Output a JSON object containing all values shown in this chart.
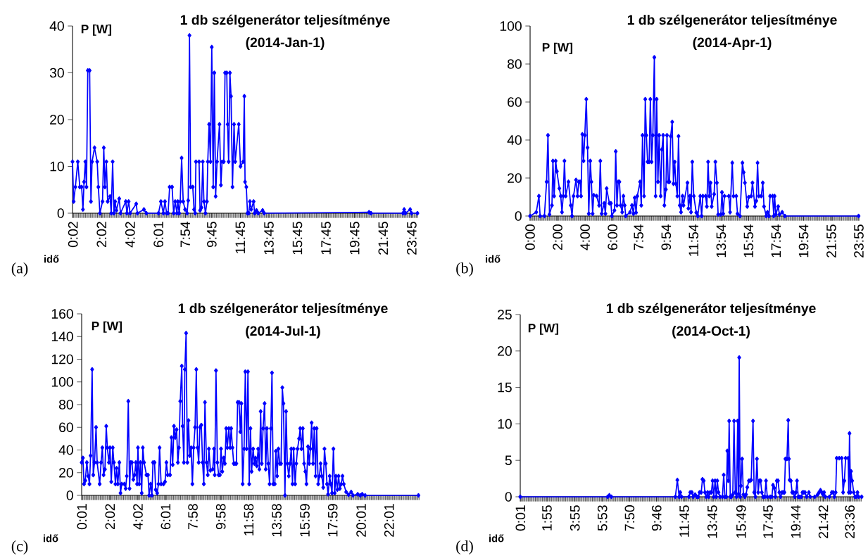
{
  "chart_data": [
    {
      "type": "line",
      "title": "1 db szélgenerátor teljesítménye",
      "subtitle": "(2014-Jan-1)",
      "xlabel": "idő",
      "ylabel": "P [W]",
      "annotations": [
        "(a)"
      ],
      "color": "#0000ff",
      "marker": "diamond",
      "xlim": [
        0,
        24.2
      ],
      "ylim": [
        0,
        40
      ],
      "yticks": [
        0,
        10,
        20,
        30,
        40
      ],
      "xticks": [
        {
          "value": 0.033,
          "label": "0:02"
        },
        {
          "value": 2.033,
          "label": "2:02"
        },
        {
          "value": 4.033,
          "label": "4:02"
        },
        {
          "value": 6.017,
          "label": "6:01"
        },
        {
          "value": 7.9,
          "label": "7:54"
        },
        {
          "value": 9.75,
          "label": "9:45"
        },
        {
          "value": 11.75,
          "label": "11:45"
        },
        {
          "value": 13.75,
          "label": "13:45"
        },
        {
          "value": 15.75,
          "label": "15:45"
        },
        {
          "value": 17.75,
          "label": "17:45"
        },
        {
          "value": 19.75,
          "label": "19:45"
        },
        {
          "value": 21.75,
          "label": "21:45"
        },
        {
          "value": 23.75,
          "label": "23:45"
        }
      ],
      "x": [
        0,
        0.08,
        0.2,
        0.37,
        0.51,
        0.64,
        0.73,
        0.81,
        0.9,
        0.98,
        1.07,
        1.2,
        1.29,
        1.37,
        1.54,
        1.73,
        1.81,
        1.92,
        2.1,
        2.19,
        2.27,
        2.37,
        2.46,
        2.63,
        2.71,
        2.81,
        2.9,
        2.98,
        3.07,
        3.27,
        3.36,
        3.73,
        3.81,
        3.93,
        4.03,
        4.46,
        4.54,
        5.0,
        5.17,
        6.02,
        6.19,
        6.36,
        6.47,
        6.59,
        6.69,
        6.8,
        6.97,
        7.08,
        7.19,
        7.31,
        7.37,
        7.47,
        7.54,
        7.64,
        7.75,
        7.88,
        8.02,
        8.1,
        8.19,
        8.27,
        8.42,
        8.51,
        8.59,
        8.64,
        8.86,
        8.93,
        9.03,
        9.12,
        9.2,
        9.31,
        9.41,
        9.47,
        9.56,
        9.66,
        9.75,
        9.85,
        9.93,
        10.02,
        10.12,
        10.29,
        10.39,
        10.47,
        10.59,
        10.68,
        10.8,
        10.86,
        10.93,
        11.02,
        11.1,
        11.2,
        11.31,
        11.39,
        11.64,
        11.76,
        11.95,
        12.03,
        12.08,
        12.17,
        12.25,
        12.34,
        12.42,
        12.51,
        12.68,
        12.75,
        12.88,
        13.0,
        13.31,
        13.42,
        20.76,
        20.9,
        23.14,
        23.22,
        23.31,
        23.64,
        23.73,
        24.15
      ],
      "values": [
        11,
        2.5,
        5.6,
        11,
        5.6,
        5.6,
        0.8,
        6.7,
        11,
        5.6,
        30.5,
        30.5,
        2.5,
        11,
        14,
        11,
        5.6,
        0,
        2.5,
        14,
        5.6,
        11,
        2.5,
        3.6,
        0,
        11,
        0,
        2.5,
        0.6,
        3.1,
        0,
        2.5,
        0,
        2.5,
        0,
        2,
        0,
        0.8,
        0,
        0,
        2.5,
        0,
        2.5,
        0,
        0,
        5.6,
        5.6,
        0,
        2.5,
        0,
        2.5,
        0,
        2.5,
        11.8,
        2.5,
        0.8,
        0,
        2.7,
        38,
        5.6,
        5.6,
        0.8,
        0,
        11,
        11,
        0.6,
        1.2,
        11,
        2.5,
        0,
        2.5,
        11,
        19,
        11,
        35.5,
        5.6,
        30,
        3.6,
        11,
        19,
        6,
        11,
        11,
        30,
        30,
        19,
        11,
        30,
        25,
        5.6,
        19,
        11,
        19,
        10,
        11,
        25,
        6.7,
        5.6,
        0,
        0,
        2.5,
        0.8,
        2.5,
        0,
        0.6,
        0,
        0.6,
        0,
        0.2,
        0,
        0,
        0.8,
        0,
        0.8,
        0,
        0
      ]
    },
    {
      "type": "line",
      "title": "1 db szélgenerátor teljesítménye",
      "subtitle": "(2014-Apr-1)",
      "xlabel": "idő",
      "ylabel": "P [W]",
      "annotations": [
        "(b)"
      ],
      "color": "#0000ff",
      "marker": "diamond",
      "xlim": [
        0,
        23.92
      ],
      "ylim": [
        0,
        100
      ],
      "yticks": [
        0,
        20,
        40,
        60,
        80,
        100
      ],
      "xticks": [
        {
          "value": 0,
          "label": "0:00"
        },
        {
          "value": 2,
          "label": "2:00"
        },
        {
          "value": 4,
          "label": "4:00"
        },
        {
          "value": 6,
          "label": "6:00"
        },
        {
          "value": 7.9,
          "label": "7:54"
        },
        {
          "value": 9.9,
          "label": "9:54"
        },
        {
          "value": 11.9,
          "label": "11:54"
        },
        {
          "value": 13.9,
          "label": "13:54"
        },
        {
          "value": 15.9,
          "label": "15:54"
        },
        {
          "value": 17.9,
          "label": "17:54"
        },
        {
          "value": 19.9,
          "label": "19:54"
        },
        {
          "value": 21.917,
          "label": "21:55"
        },
        {
          "value": 23.917,
          "label": "23:55"
        }
      ],
      "x": [
        0,
        0.45,
        0.64,
        0.73,
        1.04,
        1.2,
        1.3,
        1.41,
        1.59,
        1.66,
        1.75,
        1.86,
        1.95,
        2.13,
        2.23,
        2.32,
        2.41,
        2.5,
        2.59,
        2.79,
        2.96,
        3.05,
        3.16,
        3.34,
        3.45,
        3.54,
        3.64,
        3.71,
        3.8,
        3.89,
        3.98,
        4.09,
        4.18,
        4.27,
        4.38,
        4.46,
        4.55,
        4.63,
        4.84,
        5.02,
        5.11,
        5.21,
        5.39,
        5.48,
        5.57,
        5.77,
        5.88,
        5.95,
        6.14,
        6.23,
        6.32,
        6.41,
        6.5,
        6.59,
        6.7,
        6.79,
        6.88,
        6.96,
        7.27,
        7.41,
        7.52,
        7.61,
        7.71,
        7.8,
        8.0,
        8.09,
        8.18,
        8.29,
        8.38,
        8.46,
        8.55,
        8.66,
        8.75,
        8.84,
        8.93,
        9.04,
        9.13,
        9.21,
        9.3,
        9.39,
        9.5,
        9.59,
        9.68,
        9.77,
        9.88,
        9.96,
        10.05,
        10.14,
        10.23,
        10.34,
        10.43,
        10.52,
        10.61,
        10.71,
        10.8,
        10.89,
        10.98,
        11.09,
        11.16,
        11.45,
        11.52,
        11.63,
        11.71,
        11.8,
        11.91,
        12.09,
        12.2,
        12.38,
        12.48,
        12.57,
        12.77,
        12.86,
        12.95,
        13.04,
        13.13,
        13.21,
        13.39,
        13.48,
        13.59,
        13.68,
        13.88,
        13.96,
        14.05,
        14.14,
        14.46,
        14.55,
        14.71,
        14.8,
        15.0,
        15.09,
        15.27,
        15.45,
        15.54,
        15.63,
        15.8,
        15.91,
        16.09,
        16.18,
        16.36,
        16.46,
        16.55,
        16.64,
        16.82,
        16.93,
        17.02,
        17.18,
        17.27,
        17.38,
        17.46,
        17.64,
        17.73,
        17.79,
        17.88,
        18.05,
        18.14,
        18.34,
        18.54,
        23.9
      ],
      "values": [
        0,
        2,
        10.5,
        0,
        0,
        18,
        42.5,
        0.8,
        5.6,
        29,
        10.5,
        29,
        23.5,
        14.5,
        10.5,
        2,
        10.5,
        29,
        10.5,
        18,
        5.6,
        0,
        10.5,
        19,
        10.5,
        18,
        18,
        10.5,
        43,
        29,
        42.5,
        61.5,
        36,
        1.2,
        29,
        18,
        1.2,
        11,
        10.5,
        5.6,
        29,
        1.2,
        6.7,
        1.2,
        14.5,
        6.7,
        6.7,
        0,
        3,
        34,
        5.6,
        18,
        18,
        5.6,
        2,
        10.5,
        5.6,
        0,
        2,
        5.6,
        1.2,
        9.6,
        1.8,
        10.5,
        18,
        5.6,
        42.5,
        10.5,
        61.5,
        42.5,
        28.5,
        28.5,
        61.5,
        28.5,
        42.5,
        83.5,
        10.5,
        61.5,
        18,
        42.5,
        10.5,
        35,
        42.5,
        5.6,
        14,
        42.5,
        18,
        18,
        42,
        49.5,
        17,
        28.5,
        17,
        10.5,
        42,
        5.6,
        2,
        10.5,
        5.6,
        17.5,
        4,
        10.5,
        2,
        28.5,
        10.5,
        1.8,
        0,
        10.5,
        0,
        10.5,
        10.5,
        5,
        28.5,
        10.5,
        17.5,
        5,
        11.5,
        28.5,
        17.5,
        0.8,
        0.8,
        12.5,
        1.2,
        10.5,
        10.5,
        2,
        28,
        10.5,
        10.5,
        1.2,
        0,
        28,
        23,
        17.5,
        5,
        10,
        10.5,
        17.5,
        5,
        8,
        28,
        10.5,
        10.5,
        17.5,
        5,
        0,
        2,
        0,
        10.5,
        10.5,
        0,
        10.5,
        0.8,
        5,
        0.8,
        2,
        0,
        0
      ]
    },
    {
      "type": "line",
      "title": "1 db szélgenerátor teljesítménye",
      "subtitle": "(2014-Jul-1)",
      "xlabel": "idő",
      "ylabel": "P [W]",
      "annotations": [
        "(c)"
      ],
      "color": "#0000ff",
      "marker": "diamond",
      "xlim": [
        0,
        24.2
      ],
      "ylim": [
        0,
        160
      ],
      "yticks": [
        0,
        20,
        40,
        60,
        80,
        100,
        120,
        140,
        160
      ],
      "xticks": [
        {
          "value": 0.017,
          "label": "0:01"
        },
        {
          "value": 2.033,
          "label": "2:02"
        },
        {
          "value": 4.033,
          "label": "4:02"
        },
        {
          "value": 6.017,
          "label": "6:01"
        },
        {
          "value": 7.967,
          "label": "7:58"
        },
        {
          "value": 9.967,
          "label": "9:58"
        },
        {
          "value": 11.967,
          "label": "11:58"
        },
        {
          "value": 13.967,
          "label": "13:58"
        },
        {
          "value": 15.983,
          "label": "15:59"
        },
        {
          "value": 17.983,
          "label": "17:59"
        },
        {
          "value": 20.017,
          "label": "20:01"
        },
        {
          "value": 22.017,
          "label": "22:01"
        }
      ],
      "x": [
        0,
        0.09,
        0.17,
        0.26,
        0.37,
        0.47,
        0.56,
        0.64,
        0.75,
        0.83,
        0.92,
        1.03,
        1.11,
        1.29,
        1.39,
        1.48,
        1.57,
        1.67,
        1.76,
        1.84,
        1.95,
        2.03,
        2.12,
        2.23,
        2.31,
        2.42,
        2.5,
        2.59,
        2.7,
        2.78,
        2.87,
        3.06,
        3.15,
        3.23,
        3.34,
        3.43,
        3.51,
        3.6,
        3.7,
        3.79,
        3.88,
        3.97,
        4.03,
        4.12,
        4.21,
        4.3,
        4.38,
        4.47,
        4.64,
        4.75,
        4.83,
        4.94,
        5.03,
        5.11,
        5.22,
        5.3,
        5.41,
        5.5,
        5.58,
        5.69,
        5.86,
        5.97,
        6.07,
        6.16,
        6.33,
        6.43,
        6.52,
        6.61,
        6.7,
        6.8,
        6.89,
        6.97,
        7.06,
        7.17,
        7.23,
        7.32,
        7.39,
        7.48,
        7.57,
        7.65,
        7.74,
        7.84,
        7.93,
        8.02,
        8.12,
        8.21,
        8.3,
        8.38,
        8.47,
        8.57,
        8.66,
        8.75,
        8.83,
        8.94,
        9.03,
        9.11,
        9.22,
        9.39,
        9.48,
        9.53,
        9.62,
        9.72,
        9.81,
        9.9,
        9.98,
        10.07,
        10.17,
        10.26,
        10.35,
        10.43,
        10.54,
        10.63,
        10.71,
        10.8,
        10.89,
        10.99,
        11.08,
        11.17,
        11.27,
        11.36,
        11.44,
        11.53,
        11.63,
        11.72,
        11.81,
        11.91,
        12.0,
        12.09,
        12.17,
        12.28,
        12.37,
        12.45,
        12.54,
        12.64,
        12.73,
        12.82,
        12.9,
        12.99,
        13.1,
        13.18,
        13.27,
        13.36,
        13.46,
        13.55,
        13.63,
        13.72,
        13.83,
        13.91,
        14.0,
        14.09,
        14.19,
        14.28,
        14.37,
        14.45,
        14.56,
        14.64,
        14.73,
        14.83,
        14.92,
        15.01,
        15.1,
        15.18,
        15.29,
        15.37,
        15.46,
        15.57,
        15.65,
        15.74,
        15.84,
        15.93,
        16.02,
        16.1,
        16.21,
        16.3,
        16.38,
        16.47,
        16.57,
        16.66,
        16.75,
        16.83,
        16.94,
        17.03,
        17.11,
        17.2,
        17.3,
        17.39,
        17.48,
        17.57,
        17.65,
        17.76,
        17.84,
        17.93,
        18.03,
        18.12,
        18.21,
        18.31,
        18.4,
        18.49,
        18.59,
        18.68,
        18.77,
        18.94,
        19.11,
        19.3,
        19.43,
        19.77,
        19.95,
        20.09,
        20.3,
        24.12
      ],
      "values": [
        29,
        33,
        10,
        13,
        29,
        17,
        10,
        35,
        111,
        18,
        29,
        60,
        29,
        10,
        29,
        42,
        18,
        23,
        61,
        42,
        29,
        42,
        12,
        42,
        29,
        10,
        24,
        10,
        29,
        2,
        10,
        10,
        6,
        17,
        83,
        6,
        29,
        29,
        14,
        18,
        29,
        10,
        42,
        10,
        29,
        2,
        42,
        29,
        18,
        18,
        0,
        10,
        0,
        29,
        29,
        5,
        2,
        10,
        42,
        10,
        10,
        12,
        29,
        18,
        18,
        51,
        27,
        61,
        51,
        58,
        29,
        42,
        83,
        114,
        61,
        29,
        111,
        143,
        29,
        66,
        35,
        42,
        10,
        42,
        60,
        111,
        42,
        29,
        60,
        62,
        29,
        10,
        82,
        29,
        18,
        41,
        22,
        23,
        41,
        18,
        110,
        29,
        18,
        18,
        41,
        21,
        33,
        28,
        59,
        42,
        59,
        42,
        59,
        42,
        28,
        28,
        28,
        82,
        82,
        56,
        81,
        10,
        41,
        109,
        41,
        109,
        10,
        59,
        21,
        41,
        28,
        33,
        26,
        41,
        23,
        74,
        28,
        59,
        81,
        23,
        59,
        28,
        10,
        59,
        108,
        10,
        10,
        39,
        17,
        41,
        28,
        28,
        95,
        81,
        0,
        74,
        28,
        17,
        28,
        41,
        10,
        41,
        10,
        28,
        41,
        50,
        59,
        41,
        59,
        28,
        21,
        10,
        43,
        28,
        41,
        64,
        28,
        59,
        17,
        59,
        10,
        17,
        28,
        17,
        7,
        41,
        28,
        10,
        1,
        17,
        10,
        2,
        41,
        2,
        17,
        5,
        17,
        6,
        10,
        17,
        10,
        3,
        0.5,
        3,
        0,
        1,
        0,
        1,
        0,
        0
      ]
    },
    {
      "type": "line",
      "title": "1 db szélgenerátor teljesítménye",
      "subtitle": "(2014-Oct-1)",
      "xlabel": "idő",
      "ylabel": "P [W]",
      "annotations": [
        "(d)"
      ],
      "color": "#0000ff",
      "marker": "diamond",
      "xlim": [
        0,
        24.45
      ],
      "ylim": [
        0,
        25
      ],
      "yticks": [
        0,
        5,
        10,
        15,
        20,
        25
      ],
      "xticks": [
        {
          "value": 0.017,
          "label": "0:01"
        },
        {
          "value": 1.917,
          "label": "1:55"
        },
        {
          "value": 3.917,
          "label": "3:55"
        },
        {
          "value": 5.883,
          "label": "5:53"
        },
        {
          "value": 7.833,
          "label": "7:50"
        },
        {
          "value": 9.767,
          "label": "9:46"
        },
        {
          "value": 11.75,
          "label": "11:45"
        },
        {
          "value": 13.75,
          "label": "13:45"
        },
        {
          "value": 15.817,
          "label": "15:49"
        },
        {
          "value": 17.75,
          "label": "17:45"
        },
        {
          "value": 19.733,
          "label": "19:44"
        },
        {
          "value": 21.7,
          "label": "21:42"
        },
        {
          "value": 23.6,
          "label": "23:36"
        }
      ],
      "x": [
        0,
        6.26,
        6.38,
        6.53,
        11.11,
        11.25,
        11.38,
        11.46,
        11.55,
        12.08,
        12.17,
        12.29,
        12.38,
        12.52,
        12.65,
        12.75,
        12.84,
        12.96,
        13.05,
        13.14,
        13.23,
        13.32,
        13.42,
        13.49,
        13.6,
        13.69,
        13.77,
        13.86,
        13.95,
        14.04,
        14.11,
        14.2,
        14.3,
        14.48,
        14.57,
        14.66,
        14.76,
        14.83,
        14.9,
        14.96,
        15.04,
        15.13,
        15.22,
        15.31,
        15.4,
        15.49,
        15.57,
        15.63,
        15.68,
        15.75,
        15.8,
        15.89,
        15.98,
        16.08,
        16.17,
        16.26,
        16.37,
        16.45,
        16.54,
        16.67,
        16.75,
        16.84,
        16.95,
        17.04,
        17.12,
        17.21,
        17.3,
        17.39,
        17.51,
        17.6,
        17.69,
        17.9,
        18.02,
        18.1,
        18.19,
        18.28,
        18.37,
        18.46,
        18.55,
        18.64,
        18.75,
        18.84,
        18.92,
        18.99,
        19.1,
        19.19,
        19.24,
        19.29,
        19.38,
        19.47,
        19.56,
        19.65,
        19.74,
        19.82,
        19.91,
        20.02,
        20.14,
        20.21,
        20.3,
        20.39,
        20.5,
        20.67,
        20.76,
        21.09,
        21.3,
        21.4,
        21.5,
        21.59,
        21.68,
        21.76,
        21.85,
        22.14,
        22.31,
        22.41,
        22.5,
        22.59,
        22.66,
        22.84,
        23.02,
        23.12,
        23.21,
        23.3,
        23.48,
        23.53,
        23.58,
        23.65,
        23.69,
        23.77,
        23.88,
        23.97,
        24.06,
        24.15,
        24.23,
        24.45
      ],
      "values": [
        0,
        0,
        0.2,
        0,
        0,
        2.3,
        0,
        0.6,
        0,
        0,
        0.6,
        0.6,
        0,
        0.3,
        0,
        0,
        0.6,
        0.6,
        2.4,
        2.2,
        0.6,
        0,
        0.6,
        0,
        0.6,
        0.6,
        2.2,
        0,
        2.2,
        0,
        2.2,
        0.6,
        0,
        0,
        3,
        0,
        0,
        6.3,
        2.2,
        10.4,
        0,
        0,
        0.3,
        10.4,
        0.6,
        0,
        10.4,
        0.4,
        19.1,
        0,
        1.5,
        5.2,
        0.3,
        0,
        0.3,
        1.3,
        2.2,
        2.2,
        2.3,
        10.4,
        0.6,
        0,
        5.2,
        0.6,
        2.2,
        2.2,
        0.6,
        0,
        0,
        2.2,
        0,
        0,
        0,
        1.6,
        1.2,
        0,
        2.2,
        2.2,
        0.6,
        0,
        0.6,
        0.6,
        0.6,
        5.2,
        5.2,
        10.5,
        5.2,
        2.3,
        2.2,
        0.6,
        0.6,
        0,
        0.6,
        2.2,
        0,
        0,
        0,
        0.6,
        0.6,
        0.6,
        0,
        0.6,
        0,
        0,
        0.3,
        0.6,
        0.9,
        0.6,
        0.3,
        0.6,
        0,
        0,
        0.6,
        0.6,
        0,
        0.6,
        5.3,
        5.3,
        5.3,
        0.6,
        2.2,
        5.3,
        5.3,
        0.6,
        8.7,
        0.6,
        3.5,
        2.2,
        0.6,
        0,
        0,
        0.6,
        0,
        0
      ]
    }
  ]
}
